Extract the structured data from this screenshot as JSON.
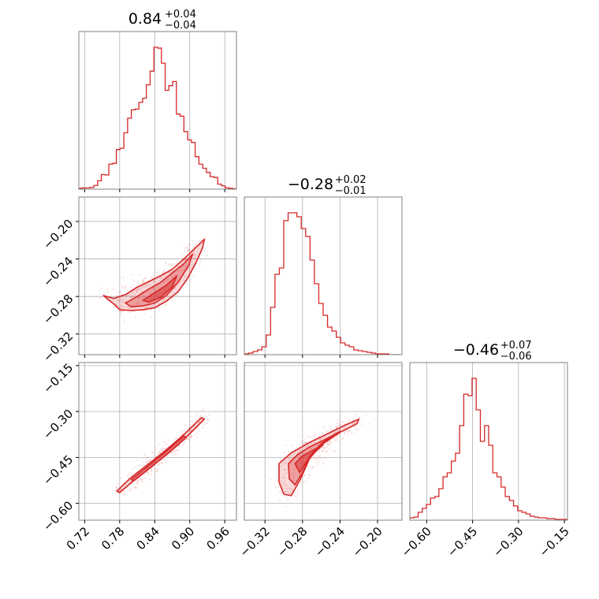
{
  "chart_data": {
    "type": "corner",
    "color": "#d62728",
    "parameters": [
      {
        "title_value": "0.84",
        "title_plus": "+0.04",
        "title_minus": "−0.04",
        "range": [
          0.71,
          0.98
        ],
        "ticks": [
          0.72,
          0.78,
          0.84,
          0.9,
          0.96
        ],
        "tick_labels": [
          "0.72",
          "0.78",
          "0.84",
          "0.90",
          "0.96"
        ],
        "histogram_counts": [
          2,
          3,
          3,
          4,
          9,
          20,
          35,
          34,
          60,
          62,
          95,
          98,
          135,
          170,
          190,
          192,
          208,
          218,
          250,
          283,
          340,
          338,
          302,
          237,
          248,
          258,
          180,
          175,
          138,
          118,
          112,
          78,
          60,
          50,
          40,
          30,
          28,
          12,
          8,
          3,
          2,
          1
        ]
      },
      {
        "title_value": "−0.28",
        "title_plus": "+0.02",
        "title_minus": "−0.01",
        "range": [
          -0.342,
          -0.174
        ],
        "ticks": [
          -0.32,
          -0.28,
          -0.24,
          -0.2
        ],
        "tick_labels": [
          "−0.32",
          "−0.28",
          "−0.24",
          "−0.20"
        ],
        "histogram_counts": [
          1,
          2,
          4,
          6,
          10,
          25,
          60,
          102,
          110,
          170,
          180,
          180,
          175,
          160,
          150,
          120,
          90,
          65,
          50,
          35,
          30,
          22,
          15,
          12,
          10,
          6,
          5,
          4,
          3,
          2,
          1,
          1,
          1,
          0,
          0,
          0
        ]
      },
      {
        "title_value": "−0.46",
        "title_plus": "+0.07",
        "title_minus": "−0.06",
        "range": [
          -0.655,
          -0.14
        ],
        "ticks": [
          -0.6,
          -0.45,
          -0.3,
          -0.15
        ],
        "tick_labels": [
          "−0.60",
          "−0.45",
          "−0.30",
          "−0.15"
        ],
        "histogram_counts": [
          3,
          4,
          10,
          15,
          20,
          28,
          30,
          40,
          55,
          60,
          75,
          85,
          120,
          160,
          158,
          180,
          140,
          100,
          120,
          95,
          60,
          55,
          42,
          30,
          25,
          18,
          12,
          10,
          8,
          5,
          4,
          3,
          3,
          2,
          2,
          1,
          1,
          1
        ]
      }
    ],
    "contours": {
      "p2_vs_p1": [
        {
          "level": "outer",
          "points": [
            [
              0.752,
              -0.279
            ],
            [
              0.77,
              -0.282
            ],
            [
              0.79,
              -0.278
            ],
            [
              0.81,
              -0.27
            ],
            [
              0.83,
              -0.264
            ],
            [
              0.85,
              -0.258
            ],
            [
              0.87,
              -0.251
            ],
            [
              0.89,
              -0.24
            ],
            [
              0.91,
              -0.228
            ],
            [
              0.925,
              -0.219
            ],
            [
              0.922,
              -0.228
            ],
            [
              0.91,
              -0.245
            ],
            [
              0.895,
              -0.262
            ],
            [
              0.88,
              -0.275
            ],
            [
              0.86,
              -0.285
            ],
            [
              0.84,
              -0.292
            ],
            [
              0.82,
              -0.294
            ],
            [
              0.8,
              -0.295
            ],
            [
              0.78,
              -0.294
            ],
            [
              0.77,
              -0.288
            ]
          ]
        },
        {
          "level": "middle",
          "points": [
            [
              0.79,
              -0.287
            ],
            [
              0.81,
              -0.28
            ],
            [
              0.83,
              -0.272
            ],
            [
              0.85,
              -0.265
            ],
            [
              0.87,
              -0.255
            ],
            [
              0.89,
              -0.245
            ],
            [
              0.905,
              -0.235
            ],
            [
              0.898,
              -0.247
            ],
            [
              0.88,
              -0.265
            ],
            [
              0.86,
              -0.279
            ],
            [
              0.84,
              -0.287
            ],
            [
              0.82,
              -0.29
            ],
            [
              0.8,
              -0.291
            ]
          ]
        },
        {
          "level": "inner",
          "points": [
            [
              0.82,
              -0.284
            ],
            [
              0.84,
              -0.276
            ],
            [
              0.86,
              -0.268
            ],
            [
              0.878,
              -0.258
            ],
            [
              0.87,
              -0.27
            ],
            [
              0.85,
              -0.281
            ],
            [
              0.83,
              -0.286
            ]
          ]
        }
      ],
      "p3_vs_p1": [
        {
          "level": "outer",
          "points": [
            [
              0.775,
              -0.56
            ],
            [
              0.8,
              -0.515
            ],
            [
              0.83,
              -0.47
            ],
            [
              0.86,
              -0.425
            ],
            [
              0.89,
              -0.375
            ],
            [
              0.92,
              -0.32
            ],
            [
              0.925,
              -0.325
            ],
            [
              0.895,
              -0.382
            ],
            [
              0.865,
              -0.433
            ],
            [
              0.835,
              -0.48
            ],
            [
              0.805,
              -0.524
            ],
            [
              0.78,
              -0.565
            ]
          ]
        },
        {
          "level": "inner",
          "points": [
            [
              0.8,
              -0.522
            ],
            [
              0.83,
              -0.476
            ],
            [
              0.86,
              -0.43
            ],
            [
              0.89,
              -0.38
            ],
            [
              0.894,
              -0.385
            ],
            [
              0.864,
              -0.435
            ],
            [
              0.834,
              -0.481
            ],
            [
              0.804,
              -0.527
            ]
          ]
        }
      ],
      "p3_vs_p2": [
        {
          "level": "outer",
          "points": [
            [
              -0.305,
              -0.47
            ],
            [
              -0.292,
              -0.435
            ],
            [
              -0.275,
              -0.405
            ],
            [
              -0.255,
              -0.375
            ],
            [
              -0.235,
              -0.345
            ],
            [
              -0.22,
              -0.325
            ],
            [
              -0.222,
              -0.34
            ],
            [
              -0.24,
              -0.368
            ],
            [
              -0.258,
              -0.405
            ],
            [
              -0.272,
              -0.45
            ],
            [
              -0.282,
              -0.52
            ],
            [
              -0.292,
              -0.575
            ],
            [
              -0.3,
              -0.57
            ],
            [
              -0.305,
              -0.53
            ]
          ]
        },
        {
          "level": "middle",
          "points": [
            [
              -0.295,
              -0.47
            ],
            [
              -0.285,
              -0.44
            ],
            [
              -0.272,
              -0.415
            ],
            [
              -0.255,
              -0.39
            ],
            [
              -0.24,
              -0.365
            ],
            [
              -0.246,
              -0.375
            ],
            [
              -0.26,
              -0.405
            ],
            [
              -0.272,
              -0.445
            ],
            [
              -0.28,
              -0.5
            ],
            [
              -0.288,
              -0.54
            ],
            [
              -0.294,
              -0.52
            ]
          ]
        },
        {
          "level": "inner",
          "points": [
            [
              -0.288,
              -0.47
            ],
            [
              -0.28,
              -0.445
            ],
            [
              -0.268,
              -0.425
            ],
            [
              -0.258,
              -0.408
            ],
            [
              -0.266,
              -0.43
            ],
            [
              -0.276,
              -0.465
            ],
            [
              -0.283,
              -0.5
            ]
          ]
        }
      ]
    },
    "grid": true
  }
}
